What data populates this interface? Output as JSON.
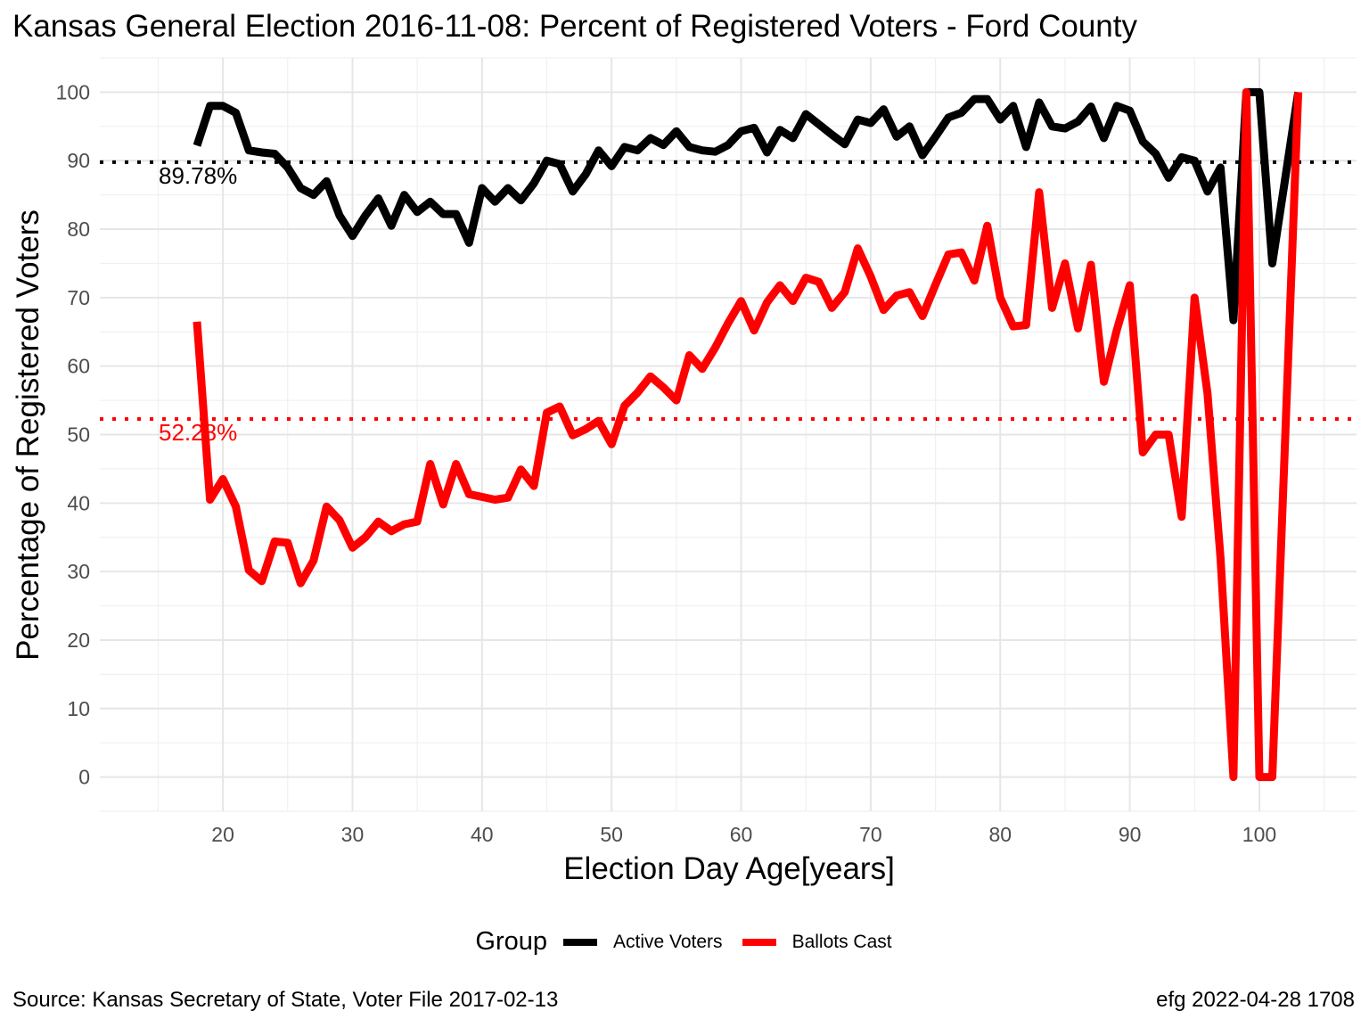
{
  "chart_data": {
    "type": "line",
    "title": "Kansas General Election 2016-11-08:  Percent of Registered Voters - Ford County",
    "xlabel": "Election Day Age[years]",
    "ylabel": "Percentage of Registered Voters",
    "xlim": [
      10.5,
      107.5
    ],
    "ylim": [
      -5,
      105
    ],
    "x_ticks": [
      20,
      30,
      40,
      50,
      60,
      70,
      80,
      90,
      100
    ],
    "y_ticks": [
      0,
      10,
      20,
      30,
      40,
      50,
      60,
      70,
      80,
      90,
      100
    ],
    "grid": true,
    "legend": {
      "title": "Group",
      "position": "bottom",
      "entries": [
        {
          "label": "Active Voters",
          "color": "#000000"
        },
        {
          "label": "Ballots Cast",
          "color": "#ff0000"
        }
      ]
    },
    "reference_lines": [
      {
        "y": 89.78,
        "label": "89.78%",
        "color": "#000000",
        "style": "dotted"
      },
      {
        "y": 52.28,
        "label": "52.28%",
        "color": "#ff0000",
        "style": "dotted"
      }
    ],
    "x": [
      18,
      19,
      20,
      21,
      22,
      23,
      24,
      25,
      26,
      27,
      28,
      29,
      30,
      31,
      32,
      33,
      34,
      35,
      36,
      37,
      38,
      39,
      40,
      41,
      42,
      43,
      44,
      45,
      46,
      47,
      48,
      49,
      50,
      51,
      52,
      53,
      54,
      55,
      56,
      57,
      58,
      59,
      60,
      61,
      62,
      63,
      64,
      65,
      66,
      67,
      68,
      69,
      70,
      71,
      72,
      73,
      74,
      75,
      76,
      77,
      78,
      79,
      80,
      81,
      82,
      83,
      84,
      85,
      86,
      87,
      88,
      89,
      90,
      91,
      92,
      93,
      94,
      95,
      96,
      97,
      98,
      99,
      100,
      101,
      102,
      103
    ],
    "series": [
      {
        "name": "Active Voters",
        "color": "#000000",
        "values": [
          92.2,
          98.0,
          98.0,
          97.0,
          91.5,
          91.2,
          91.0,
          89.0,
          86.0,
          85.0,
          87.0,
          82.0,
          79.0,
          82.0,
          84.5,
          80.5,
          85.0,
          82.5,
          84.0,
          82.2,
          82.2,
          78.0,
          86.0,
          84.0,
          86.0,
          84.2,
          86.7,
          90.0,
          89.5,
          85.5,
          88.0,
          91.5,
          89.2,
          92.0,
          91.5,
          93.3,
          92.3,
          94.3,
          92.0,
          91.5,
          91.3,
          92.3,
          94.3,
          94.8,
          91.2,
          94.5,
          93.3,
          96.8,
          95.3,
          93.8,
          92.4,
          96.0,
          95.5,
          97.5,
          93.5,
          95.0,
          90.8,
          93.5,
          96.3,
          97.0,
          99.0,
          99.0,
          96.0,
          98.0,
          92.0,
          98.5,
          95.0,
          94.7,
          95.7,
          97.9,
          93.3,
          98.0,
          97.3,
          92.8,
          91.0,
          87.5,
          90.5,
          90.0,
          85.5,
          89.0,
          66.7,
          100.0,
          100.0,
          75.0,
          87.5,
          100.0
        ]
      },
      {
        "name": "Ballots Cast",
        "color": "#ff0000",
        "values": [
          66.5,
          40.5,
          43.5,
          39.5,
          30.2,
          28.6,
          34.4,
          34.2,
          28.3,
          31.6,
          39.5,
          37.5,
          33.5,
          35.0,
          37.3,
          35.9,
          36.9,
          37.3,
          45.7,
          39.8,
          45.7,
          41.3,
          40.9,
          40.5,
          40.8,
          44.9,
          42.5,
          53.2,
          54.1,
          49.9,
          50.8,
          52.0,
          48.6,
          54.2,
          56.1,
          58.5,
          56.9,
          55.0,
          61.6,
          59.6,
          62.7,
          66.3,
          69.5,
          65.2,
          69.3,
          71.8,
          69.5,
          72.9,
          72.3,
          68.5,
          70.8,
          77.2,
          73.1,
          68.2,
          70.3,
          70.8,
          67.3,
          71.9,
          76.3,
          76.6,
          72.5,
          80.5,
          70.0,
          65.8,
          66.0,
          85.4,
          68.5,
          75.0,
          65.5,
          74.8,
          57.7,
          65.3,
          71.8,
          47.4,
          50.0,
          50.0,
          38.0,
          70.0,
          56.0,
          32.0,
          0.0,
          100.0,
          0.0,
          0.0,
          50.0,
          100.0
        ]
      }
    ]
  },
  "captions": {
    "left": "Source:  Kansas Secretary of State, Voter File  2017-02-13",
    "right": "efg 2022-04-28 1708"
  }
}
